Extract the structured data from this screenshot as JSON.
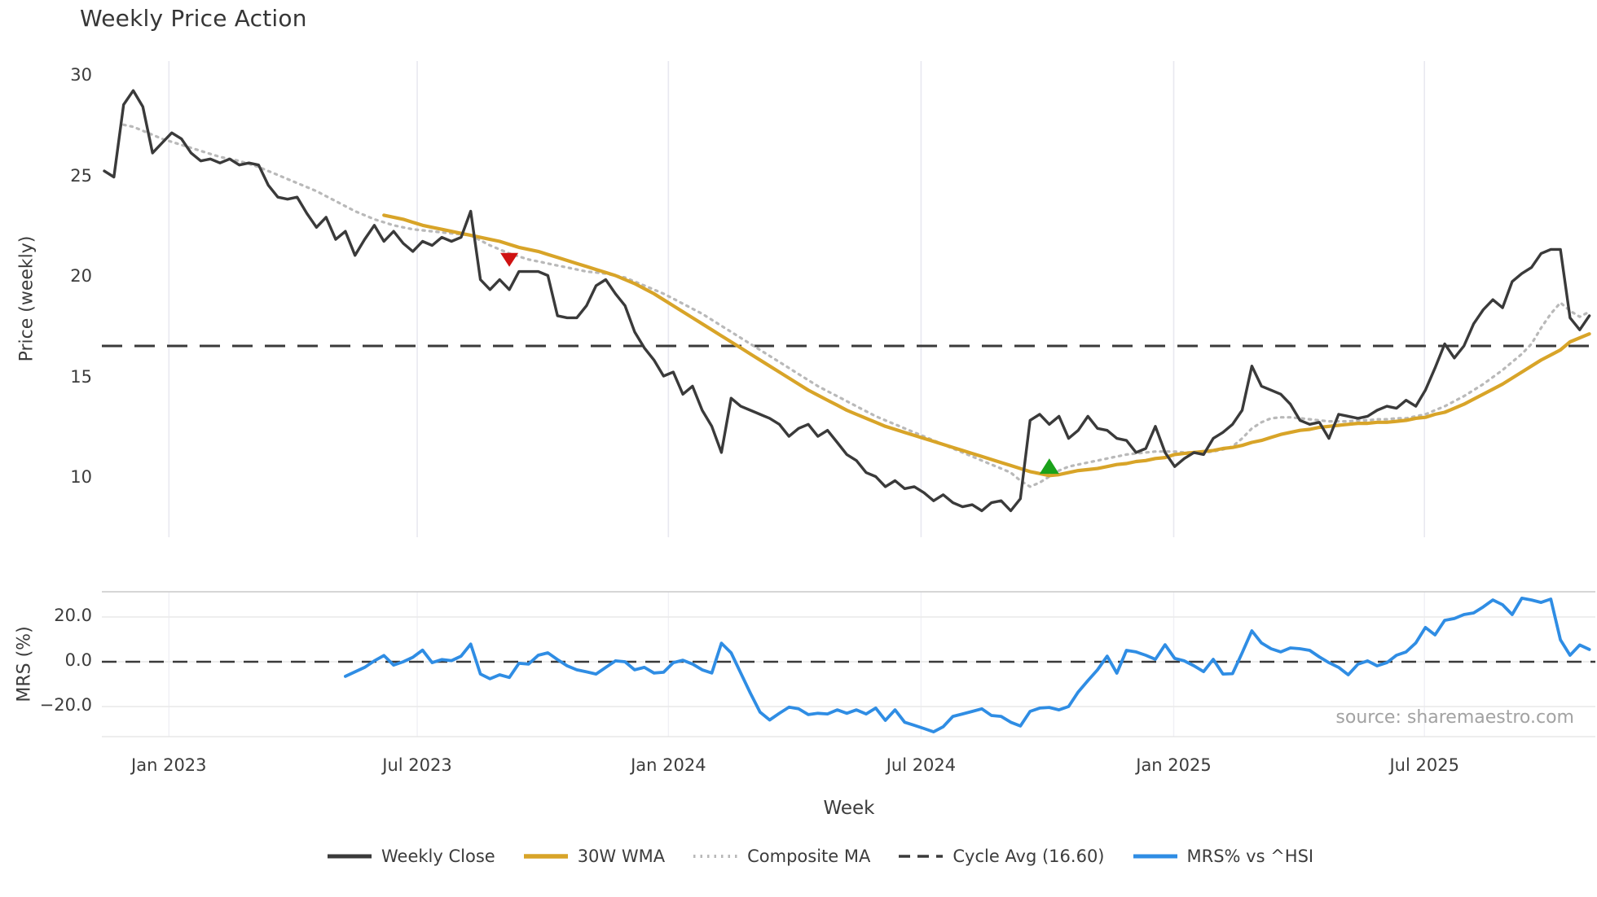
{
  "title": "Weekly Price Action",
  "xlabel": "Week",
  "source": "source: sharemaestro.com",
  "main_panel": {
    "ylabel": "Price (weekly)",
    "yticks": [
      {
        "label": "30",
        "v": 30
      },
      {
        "label": "25",
        "v": 25
      },
      {
        "label": "20",
        "v": 20
      },
      {
        "label": "15",
        "v": 15
      },
      {
        "label": "10",
        "v": 10
      }
    ]
  },
  "mrs_panel": {
    "ylabel": "MRS (%)",
    "yticks": [
      {
        "label": "20.0",
        "v": 20
      },
      {
        "label": "0.0",
        "v": 0
      },
      {
        "label": "−20.0",
        "v": -20
      }
    ]
  },
  "x_ticks": [
    {
      "label": "Jan 2023",
      "week": 6.7
    },
    {
      "label": "Jul 2023",
      "week": 32.45
    },
    {
      "label": "Jan 2024",
      "week": 58.5
    },
    {
      "label": "Jul 2024",
      "week": 84.7
    },
    {
      "label": "Jan 2025",
      "week": 110.9
    },
    {
      "label": "Jul 2025",
      "week": 136.9
    }
  ],
  "legend": {
    "items": [
      {
        "label": "Weekly Close",
        "color": "#3a3a3a",
        "style": "solid",
        "width": 5
      },
      {
        "label": "30W WMA",
        "color": "#d8a428",
        "style": "solid",
        "width": 5.5
      },
      {
        "label": "Composite MA",
        "color": "#b9b9b9",
        "style": "dotted",
        "width": 4
      },
      {
        "label": "Cycle Avg (16.60)",
        "color": "#3a3a3a",
        "style": "dashed",
        "width": 3.5
      },
      {
        "label": "MRS% vs ^HSI",
        "color": "#2f8de4",
        "style": "solid",
        "width": 5
      }
    ]
  },
  "colors": {
    "weekly_close": "#3a3a3a",
    "wma": "#d8a428",
    "composite": "#b9b9b9",
    "cycle_avg": "#3a3a3a",
    "mrs": "#2f8de4",
    "sell_marker": "#cf1212",
    "buy_marker": "#1aa21a",
    "grid": "#e8e8f0",
    "mrs_grid": "#e9e9e9",
    "panel_border": "#c9c9c9",
    "text": "#3c3c3c",
    "source_text": "#a2a2a2"
  },
  "chart_data": {
    "type": "line",
    "title": "Weekly Price Action",
    "xlabel": "Week",
    "x_start": "2022-11-14",
    "x_step_days": 7,
    "weeks": 155,
    "x_tick_labels": [
      "Jan 2023",
      "Jul 2023",
      "Jan 2024",
      "Jul 2024",
      "Jan 2025",
      "Jul 2025"
    ],
    "ylabel_price": "Price (weekly)",
    "ylabel_mrs": "MRS (%)",
    "ylim_price": [
      7.1,
      30.8
    ],
    "ylim_mrs": [
      -33.5,
      31.3
    ],
    "grid": "vertical-months",
    "legend_position": "bottom",
    "cycle_avg": 16.6,
    "series": [
      {
        "name": "Weekly Close",
        "panel": "price",
        "start_index": 0,
        "color": "#3a3a3a",
        "width": 3.4,
        "dash": null,
        "values": [
          25.3,
          25.0,
          28.6,
          29.3,
          28.5,
          26.2,
          26.7,
          27.2,
          26.9,
          26.2,
          25.8,
          25.9,
          25.7,
          25.9,
          25.6,
          25.7,
          25.6,
          24.6,
          24.0,
          23.9,
          24.0,
          23.2,
          22.5,
          23.0,
          21.9,
          22.3,
          21.1,
          21.9,
          22.6,
          21.8,
          22.3,
          21.7,
          21.3,
          21.8,
          21.6,
          22.0,
          21.8,
          22.0,
          23.3,
          19.9,
          19.4,
          19.9,
          19.4,
          20.3,
          20.3,
          20.3,
          20.1,
          18.1,
          18.0,
          18.0,
          18.6,
          19.6,
          19.9,
          19.2,
          18.6,
          17.3,
          16.5,
          15.9,
          15.1,
          15.3,
          14.2,
          14.6,
          13.4,
          12.6,
          11.3,
          14.0,
          13.6,
          13.4,
          13.2,
          13.0,
          12.7,
          12.1,
          12.5,
          12.7,
          12.1,
          12.4,
          11.8,
          11.2,
          10.9,
          10.3,
          10.1,
          9.6,
          9.9,
          9.5,
          9.6,
          9.3,
          8.9,
          9.2,
          8.8,
          8.6,
          8.7,
          8.4,
          8.8,
          8.9,
          8.4,
          9.0,
          12.9,
          13.2,
          12.7,
          13.1,
          12.0,
          12.4,
          13.1,
          12.5,
          12.4,
          12.0,
          11.9,
          11.3,
          11.5,
          12.6,
          11.3,
          10.6,
          11.0,
          11.3,
          11.2,
          12.0,
          12.3,
          12.7,
          13.4,
          15.6,
          14.6,
          14.4,
          14.2,
          13.7,
          12.9,
          12.7,
          12.8,
          12.0,
          13.2,
          13.1,
          13.0,
          13.1,
          13.4,
          13.6,
          13.5,
          13.9,
          13.6,
          14.4,
          15.5,
          16.7,
          16.0,
          16.6,
          17.7,
          18.4,
          18.9,
          18.5,
          19.8,
          20.2,
          20.5,
          21.2,
          21.4,
          21.4,
          18.0,
          17.4,
          18.1
        ]
      },
      {
        "name": "30W WMA",
        "panel": "price",
        "start_index": 29,
        "color": "#d8a428",
        "width": 4.2,
        "dash": null,
        "values": [
          23.1,
          23.0,
          22.9,
          22.75,
          22.6,
          22.5,
          22.4,
          22.3,
          22.2,
          22.1,
          22.0,
          21.9,
          21.8,
          21.65,
          21.5,
          21.4,
          21.3,
          21.15,
          21.0,
          20.85,
          20.7,
          20.55,
          20.4,
          20.25,
          20.1,
          19.9,
          19.7,
          19.45,
          19.2,
          18.9,
          18.6,
          18.3,
          18.0,
          17.7,
          17.4,
          17.1,
          16.8,
          16.5,
          16.2,
          15.9,
          15.6,
          15.3,
          15.0,
          14.7,
          14.4,
          14.15,
          13.9,
          13.65,
          13.4,
          13.2,
          13.0,
          12.8,
          12.6,
          12.45,
          12.3,
          12.15,
          12.0,
          11.85,
          11.7,
          11.55,
          11.4,
          11.25,
          11.1,
          10.95,
          10.8,
          10.65,
          10.5,
          10.35,
          10.25,
          10.15,
          10.2,
          10.3,
          10.4,
          10.45,
          10.5,
          10.6,
          10.7,
          10.75,
          10.85,
          10.9,
          11.0,
          11.05,
          11.2,
          11.25,
          11.3,
          11.35,
          11.4,
          11.5,
          11.55,
          11.65,
          11.8,
          11.9,
          12.05,
          12.2,
          12.3,
          12.4,
          12.45,
          12.55,
          12.6,
          12.65,
          12.7,
          12.75,
          12.75,
          12.8,
          12.8,
          12.85,
          12.9,
          13.0,
          13.05,
          13.2,
          13.3,
          13.5,
          13.7,
          13.95,
          14.2,
          14.45,
          14.7,
          15.0,
          15.3,
          15.6,
          15.9,
          16.15,
          16.4,
          16.8,
          17.0,
          17.2
        ]
      },
      {
        "name": "Composite MA",
        "panel": "price",
        "start_index": 2,
        "color": "#b9b9b9",
        "width": 3.2,
        "dash": "2.5 6",
        "values": [
          27.6,
          27.5,
          27.3,
          27.1,
          26.9,
          26.75,
          26.6,
          26.45,
          26.3,
          26.15,
          26.0,
          25.9,
          25.8,
          25.65,
          25.5,
          25.3,
          25.1,
          24.9,
          24.7,
          24.5,
          24.3,
          24.05,
          23.8,
          23.55,
          23.3,
          23.1,
          22.9,
          22.75,
          22.6,
          22.5,
          22.4,
          22.35,
          22.3,
          22.25,
          22.2,
          22.15,
          22.1,
          21.85,
          21.6,
          21.4,
          21.2,
          21.05,
          20.9,
          20.8,
          20.7,
          20.6,
          20.5,
          20.4,
          20.3,
          20.25,
          20.2,
          20.1,
          20.0,
          19.8,
          19.6,
          19.4,
          19.2,
          18.95,
          18.7,
          18.45,
          18.2,
          17.9,
          17.6,
          17.3,
          17.0,
          16.7,
          16.4,
          16.1,
          15.8,
          15.5,
          15.2,
          14.9,
          14.6,
          14.35,
          14.1,
          13.85,
          13.6,
          13.35,
          13.1,
          12.9,
          12.7,
          12.5,
          12.3,
          12.1,
          11.9,
          11.7,
          11.5,
          11.3,
          11.1,
          10.9,
          10.7,
          10.5,
          10.3,
          9.9,
          9.6,
          9.8,
          10.1,
          10.4,
          10.6,
          10.7,
          10.8,
          10.9,
          11.0,
          11.1,
          11.2,
          11.25,
          11.3,
          11.35,
          11.35,
          11.35,
          11.3,
          11.3,
          11.3,
          11.35,
          11.45,
          11.6,
          12.0,
          12.5,
          12.8,
          13.0,
          13.05,
          13.05,
          13.0,
          12.95,
          12.9,
          12.85,
          12.85,
          12.85,
          12.9,
          12.9,
          12.95,
          12.95,
          13.0,
          13.0,
          13.1,
          13.2,
          13.4,
          13.6,
          13.85,
          14.1,
          14.4,
          14.7,
          15.05,
          15.4,
          15.8,
          16.2,
          16.7,
          17.5,
          18.2,
          18.75,
          18.35,
          18.05,
          18.3
        ]
      },
      {
        "name": "MRS% vs ^HSI",
        "panel": "mrs",
        "start_index": 25,
        "color": "#2f8de4",
        "width": 3.8,
        "dash": null,
        "values": [
          -6.5,
          -4.5,
          -2.5,
          0.4,
          2.8,
          -1.5,
          0.0,
          2.0,
          5.2,
          -0.4,
          1.0,
          0.5,
          2.5,
          7.9,
          -5.5,
          -7.6,
          -5.8,
          -7.0,
          -0.7,
          -1.0,
          2.9,
          4.0,
          1.0,
          -1.8,
          -3.6,
          -4.5,
          -5.5,
          -2.5,
          0.4,
          0.0,
          -3.6,
          -2.5,
          -5.0,
          -4.7,
          -0.4,
          0.7,
          -1.0,
          -3.6,
          -5.0,
          8.3,
          4.0,
          -5.0,
          -14.0,
          -22.5,
          -26.0,
          -23.0,
          -20.3,
          -21.0,
          -23.6,
          -23.0,
          -23.3,
          -21.5,
          -23.0,
          -21.5,
          -23.3,
          -20.7,
          -26.2,
          -21.5,
          -27.0,
          -28.4,
          -29.8,
          -31.3,
          -29.0,
          -24.4,
          -23.3,
          -22.2,
          -21.0,
          -24.0,
          -24.4,
          -27.0,
          -28.7,
          -22.2,
          -20.7,
          -20.4,
          -21.5,
          -20.0,
          -13.5,
          -8.4,
          -3.6,
          2.5,
          -5.1,
          5.1,
          4.4,
          2.9,
          1.1,
          7.6,
          1.5,
          0.4,
          -1.8,
          -4.4,
          1.1,
          -5.5,
          -5.3,
          4.0,
          13.8,
          8.4,
          5.8,
          4.4,
          6.2,
          5.8,
          5.1,
          2.2,
          -0.4,
          -2.5,
          -5.8,
          -1.1,
          0.4,
          -1.8,
          -0.4,
          2.9,
          4.4,
          8.4,
          15.3,
          12.0,
          18.5,
          19.3,
          21.1,
          21.8,
          24.5,
          27.6,
          25.5,
          21.1,
          28.4,
          27.6,
          26.5,
          28.0,
          9.8,
          2.9,
          7.5,
          5.5
        ]
      }
    ],
    "reference_lines": [
      {
        "name": "Cycle Avg (16.60)",
        "panel": "price",
        "value": 16.6,
        "color": "#3a3a3a",
        "dash": "25 15",
        "width": 3
      },
      {
        "name": "MRS zero line",
        "panel": "mrs",
        "value": 0,
        "color": "#3a3a3a",
        "dash": "18 11",
        "width": 2.6
      }
    ],
    "markers": [
      {
        "name": "sell-signal",
        "shape": "triangle-down",
        "color": "#cf1212",
        "week_index": 42,
        "value": 20.9
      },
      {
        "name": "buy-signal",
        "shape": "triangle-up",
        "color": "#1aa21a",
        "week_index": 98,
        "value": 10.6
      }
    ]
  }
}
